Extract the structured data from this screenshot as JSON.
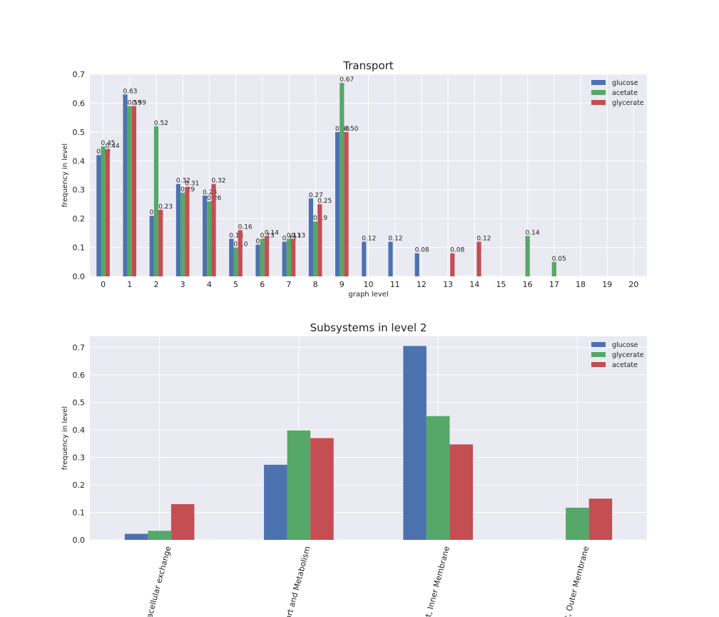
{
  "chart_data": [
    {
      "type": "bar",
      "title": "Transport",
      "xlabel": "graph level",
      "ylabel": "frequency in level",
      "categories": [
        "0",
        "1",
        "2",
        "3",
        "4",
        "5",
        "6",
        "7",
        "8",
        "9",
        "10",
        "11",
        "12",
        "13",
        "14",
        "15",
        "16",
        "17",
        "18",
        "19",
        "20"
      ],
      "ylim": [
        0,
        0.7
      ],
      "yticks": [
        "0.0",
        "0.1",
        "0.2",
        "0.3",
        "0.4",
        "0.5",
        "0.6",
        "0.7"
      ],
      "grid": true,
      "legend_position": "top-right",
      "data_labels": true,
      "series": [
        {
          "name": "glucose",
          "color": "#4c72b0",
          "values": [
            0.42,
            0.63,
            0.21,
            0.32,
            0.28,
            0.13,
            0.11,
            0.12,
            0.27,
            0.5,
            0.12,
            0.12,
            0.08,
            null,
            null,
            null,
            null,
            null,
            null,
            null,
            null
          ],
          "labels": [
            "0.42",
            "0.63",
            "0.21",
            "0.32",
            "0.28",
            "0.13",
            "0.11",
            "0.12",
            "0.27",
            "0.50",
            "0.12",
            "0.12",
            "0.08",
            null,
            null,
            null,
            null,
            null,
            null,
            null,
            null
          ]
        },
        {
          "name": "acetate",
          "color": "#55a868",
          "values": [
            0.45,
            0.59,
            0.52,
            0.29,
            0.26,
            0.1,
            0.13,
            0.13,
            0.19,
            0.67,
            null,
            null,
            null,
            null,
            null,
            null,
            0.14,
            0.05,
            null,
            null,
            null
          ],
          "labels": [
            "0.45",
            "0.59",
            "0.52",
            "0.29",
            "0.26",
            "0.10",
            "0.13",
            "0.13",
            "0.19",
            "0.67",
            null,
            null,
            null,
            null,
            null,
            null,
            "0.14",
            "0.05",
            null,
            null,
            null
          ]
        },
        {
          "name": "glycerate",
          "color": "#c44e52",
          "values": [
            0.44,
            0.59,
            0.23,
            0.31,
            0.32,
            0.16,
            0.14,
            0.13,
            0.25,
            0.5,
            null,
            null,
            null,
            0.08,
            0.12,
            null,
            null,
            null,
            null,
            null,
            null
          ],
          "labels": [
            "0.44",
            "0.59",
            "0.23",
            "0.31",
            "0.32",
            "0.16",
            "0.14",
            "0.13",
            "0.25",
            "0.50",
            null,
            null,
            null,
            "0.08",
            "0.12",
            null,
            null,
            null,
            null,
            null,
            null
          ]
        }
      ]
    },
    {
      "type": "bar",
      "title": "Subsystems in level 2",
      "xlabel": "",
      "ylabel": "frequency in level",
      "categories": [
        "racellular exchange",
        "ort and Metabolism",
        "rt, Inner Membrane",
        "rt, Outer Membrane"
      ],
      "ylim": [
        0,
        0.74
      ],
      "yticks": [
        "0.0",
        "0.1",
        "0.2",
        "0.3",
        "0.4",
        "0.5",
        "0.6",
        "0.7"
      ],
      "grid": true,
      "legend_position": "top-right",
      "tick_rotation": -75,
      "series": [
        {
          "name": "glucose",
          "color": "#4c72b0",
          "values": [
            0.022,
            0.273,
            0.705,
            0
          ]
        },
        {
          "name": "glycerate",
          "color": "#55a868",
          "values": [
            0.033,
            0.398,
            0.45,
            0.117
          ]
        },
        {
          "name": "acetate",
          "color": "#c44e52",
          "values": [
            0.13,
            0.37,
            0.347,
            0.15
          ]
        }
      ]
    }
  ]
}
